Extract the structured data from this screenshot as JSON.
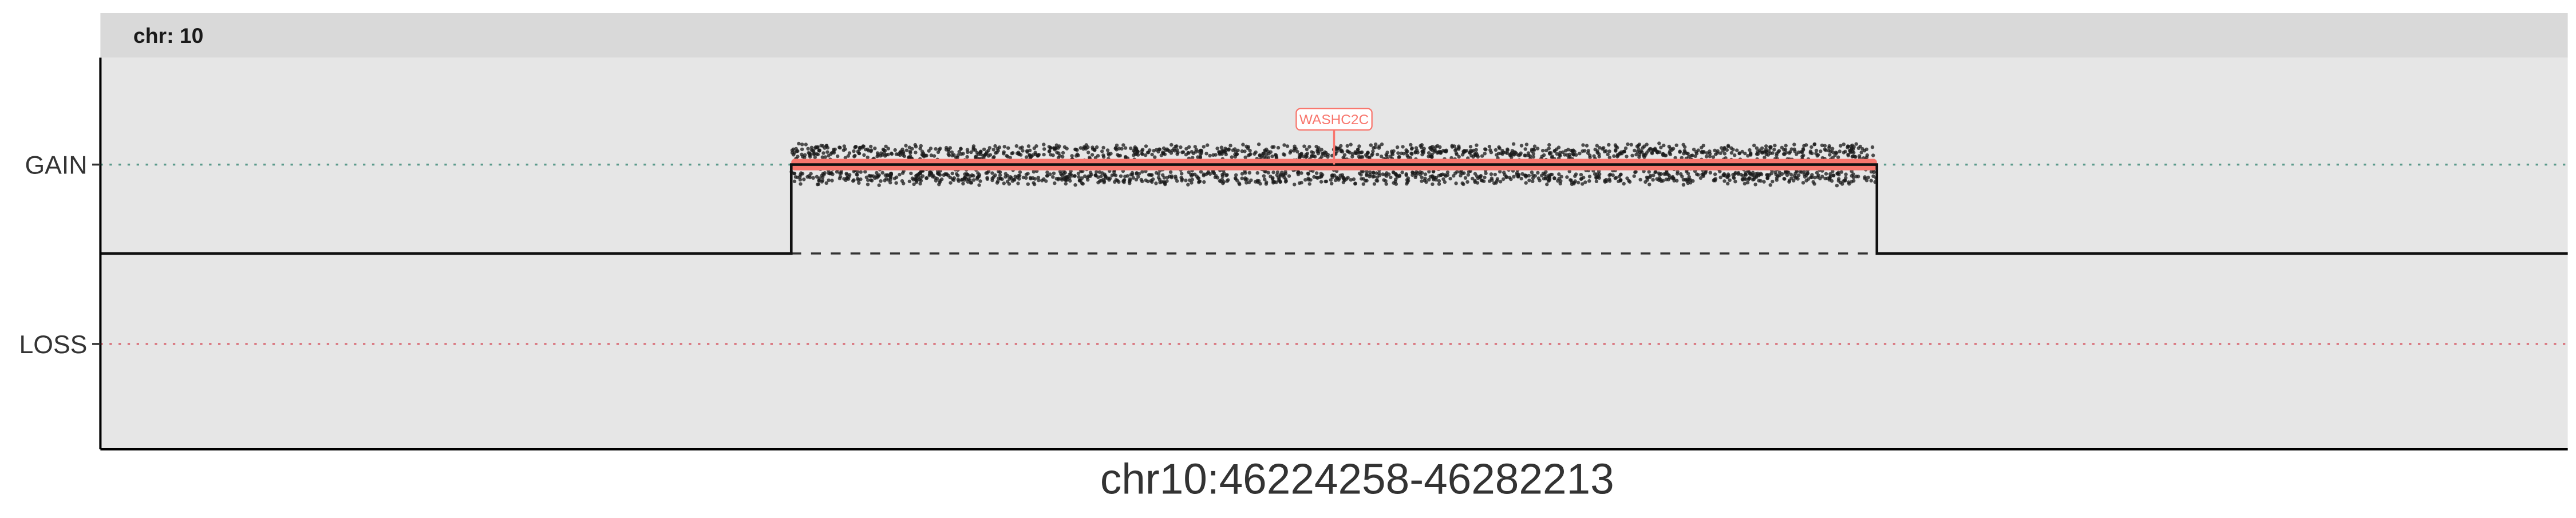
{
  "chart_data": {
    "type": "line",
    "facet_label": "chr: 10",
    "xlabel": "chr10:46224258-46282213",
    "ylabel": "",
    "y_categories": [
      "LOSS",
      "GAIN"
    ],
    "baseline": "neutral",
    "grid": false,
    "background": "#e6e6e6",
    "strip_background": "#d9d9d9",
    "copy_number_profile": [
      {
        "x_fraction": 0.0,
        "state": "neutral"
      },
      {
        "x_fraction": 0.28,
        "state": "GAIN"
      },
      {
        "x_fraction": 0.72,
        "state": "neutral"
      },
      {
        "x_fraction": 1.0,
        "state": "neutral"
      }
    ],
    "segments": [
      {
        "state": "GAIN",
        "start_fraction": 0.28,
        "end_fraction": 0.72,
        "color": "#f8766d"
      }
    ],
    "gene_annotations": [
      {
        "label": "WASHC2C",
        "x_fraction": 0.5,
        "state": "GAIN",
        "color": "#f8766d"
      }
    ],
    "reference_line_colors": {
      "GAIN": "#5b9a8b",
      "LOSS": "#d9707a"
    },
    "point_color": "#1a1a1a"
  }
}
